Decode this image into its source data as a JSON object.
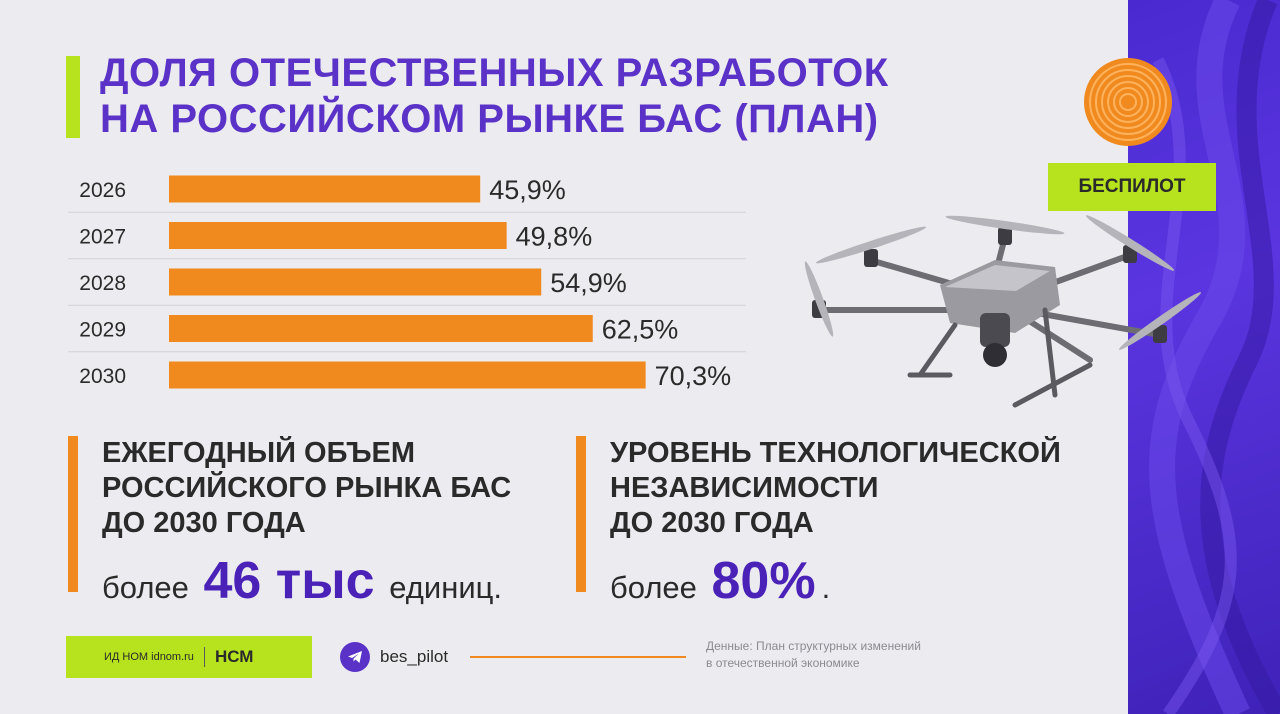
{
  "title": {
    "line1": "ДОЛЯ ОТЕЧЕСТВЕННЫХ РАЗРАБОТОК",
    "line2": "НА РОССИЙСКОМ РЫНКЕ БАС (ПЛАН)"
  },
  "brand": "БЕСПИЛОТ",
  "chart_data": {
    "type": "bar",
    "orientation": "horizontal",
    "categories": [
      "2026",
      "2027",
      "2028",
      "2029",
      "2030"
    ],
    "values": [
      45.9,
      49.8,
      54.9,
      62.5,
      70.3
    ],
    "value_labels": [
      "45,9%",
      "49,8%",
      "54,9%",
      "62,5%",
      "70,3%"
    ],
    "bar_color": "#f08a1e",
    "grid": true
  },
  "stats": [
    {
      "heading": [
        "ЕЖЕГОДНЫЙ ОБЪЕМ",
        "РОССИЙСКОГО РЫНКА БАС",
        "ДО 2030 ГОДА"
      ],
      "prefix": "более",
      "value": "46 тыс",
      "suffix": "единиц."
    },
    {
      "heading": [
        "УРОВЕНЬ ТЕХНОЛОГИЧЕСКОЙ",
        "НЕЗАВИСИМОСТИ",
        "ДО 2030 ГОДА"
      ],
      "prefix": "более",
      "value": "80%",
      "suffix": "."
    }
  ],
  "footer": {
    "publisher": "ИД НОМ idnom.ru",
    "publisher_logo": "НСМ",
    "telegram_handle": "bes_pilot",
    "source_line1": "Денные: План структурных изменений",
    "source_line2": "в отечественной экономике"
  },
  "colors": {
    "accent_orange": "#f08a1e",
    "accent_lime": "#b6e31d",
    "brand_purple": "#5a32c8",
    "value_purple": "#4a22b8"
  },
  "icons": {
    "logo": "concentric-rings-logo",
    "telegram": "telegram-icon",
    "drone": "drone-illustration"
  }
}
